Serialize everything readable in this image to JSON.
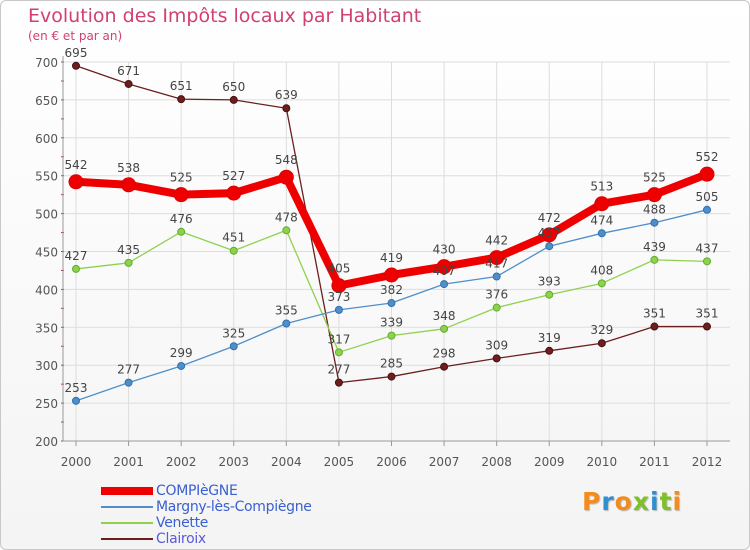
{
  "header": {
    "title": "Evolution des Impôts locaux par Habitant",
    "subtitle": "(en € et par an)"
  },
  "brand": {
    "logo_text": "Proxiti",
    "letter_colors": [
      "#f28c1e",
      "#2f8fd0",
      "#f28c1e",
      "#7fbf2a",
      "#2f8fd0",
      "#7fbf2a",
      "#f28c1e"
    ]
  },
  "chart_data": {
    "type": "line",
    "title": "Evolution des Impôts locaux par Habitant",
    "subtitle": "(en € et par an)",
    "xlabel": "",
    "ylabel": "",
    "x": [
      "2000",
      "2001",
      "2002",
      "2003",
      "2004",
      "2005",
      "2006",
      "2007",
      "2008",
      "2009",
      "2010",
      "2011",
      "2012"
    ],
    "ylim": [
      200,
      700
    ],
    "yticks": [
      200,
      250,
      300,
      350,
      400,
      450,
      500,
      550,
      600,
      650,
      700
    ],
    "grid": true,
    "legend_position": "bottom-left",
    "series": [
      {
        "name": "COMPIèGNE",
        "color": "#ee0000",
        "values": [
          542,
          538,
          525,
          527,
          548,
          405,
          419,
          430,
          442,
          472,
          513,
          525,
          552
        ]
      },
      {
        "name": "Margny-lès-Compiègne",
        "color": "#4f8fc9",
        "values": [
          253,
          277,
          299,
          325,
          355,
          373,
          382,
          407,
          417,
          457,
          474,
          488,
          505
        ]
      },
      {
        "name": "Venette",
        "color": "#8fd14f",
        "values": [
          427,
          435,
          476,
          451,
          478,
          317,
          339,
          348,
          376,
          393,
          408,
          439,
          437
        ]
      },
      {
        "name": "Clairoix",
        "color": "#6b1f1f",
        "values": [
          695,
          671,
          651,
          650,
          639,
          277,
          285,
          298,
          309,
          319,
          329,
          351,
          351
        ]
      }
    ]
  }
}
